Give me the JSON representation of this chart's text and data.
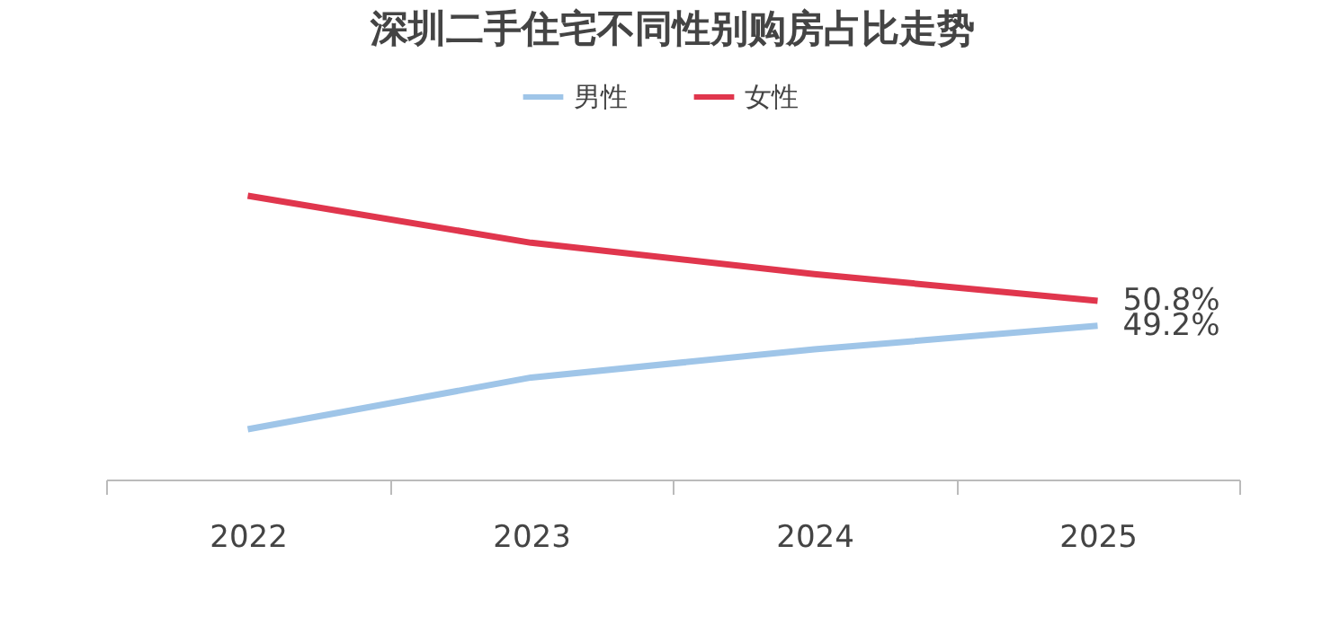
{
  "chart_data": {
    "type": "line",
    "title": "深圳二手住宅不同性别购房占比走势",
    "categories": [
      "2022",
      "2023",
      "2024",
      "2025"
    ],
    "legend": "top",
    "grid": false,
    "marker": "none",
    "line_style": "solid",
    "series": [
      {
        "name": "男性",
        "color": "#9fc5e8",
        "values": [
          42.6,
          45.9,
          47.7,
          49.2
        ],
        "value_labels": [
          null,
          null,
          null,
          "49.2%"
        ]
      },
      {
        "name": "女性",
        "color": "#e0364d",
        "values": [
          57.5,
          54.5,
          52.5,
          50.8
        ],
        "value_labels": [
          null,
          null,
          null,
          "50.8%"
        ]
      }
    ]
  }
}
